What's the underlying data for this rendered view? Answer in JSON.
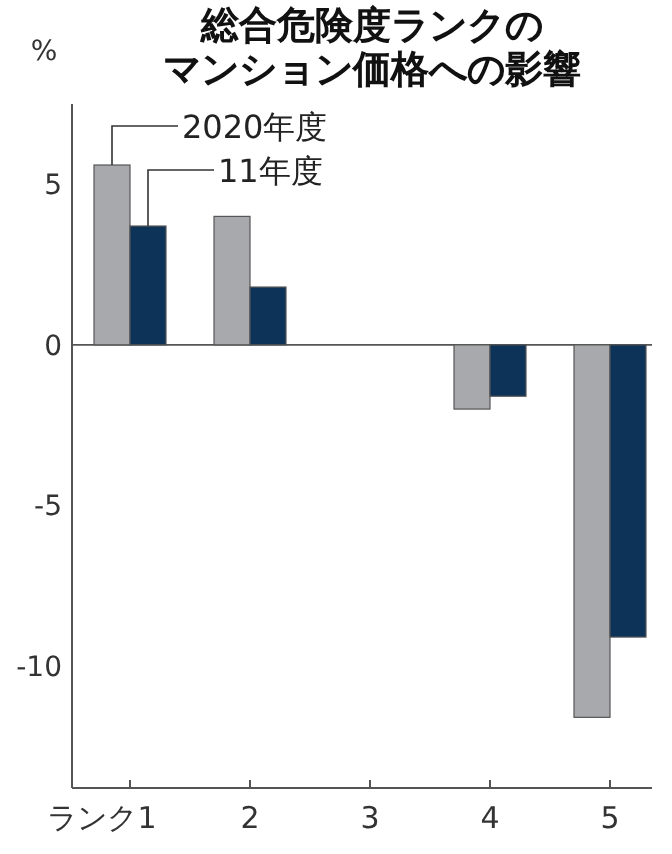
{
  "chart_data": {
    "type": "bar",
    "title": "総合危険度ランクの",
    "subtitle": "マンション価格への影響",
    "ylabel": "%",
    "categories": [
      "ランク1",
      "2",
      "3",
      "4",
      "5"
    ],
    "series": [
      {
        "name": "2020年度",
        "color": "#a7a9ac",
        "values": [
          5.6,
          4.0,
          null,
          -2.0,
          -11.6
        ]
      },
      {
        "name": "11年度",
        "color": "#0d3358",
        "values": [
          3.7,
          1.8,
          null,
          -1.6,
          -9.1
        ]
      }
    ],
    "ylim": [
      -13.8,
      7.5
    ],
    "yticks": [
      {
        "value": -10,
        "label": "-10"
      },
      {
        "value": -5,
        "label": "-5"
      },
      0,
      5
    ]
  }
}
